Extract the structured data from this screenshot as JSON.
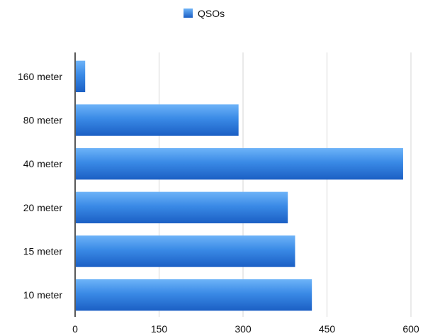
{
  "chart_data": {
    "type": "bar",
    "orientation": "horizontal",
    "categories": [
      "160 meter",
      "80 meter",
      "40 meter",
      "20 meter",
      "15 meter",
      "10 meter"
    ],
    "series": [
      {
        "name": "QSOs",
        "values": [
          18,
          292,
          586,
          380,
          393,
          423
        ],
        "color": "#3a86e0"
      }
    ],
    "title": "",
    "xlabel": "",
    "ylabel": "",
    "xlim": [
      0,
      600
    ],
    "x_ticks": [
      0,
      150,
      300,
      450,
      600
    ],
    "grid": "vertical",
    "legend": {
      "position": "top-center",
      "label": "QSOs"
    }
  }
}
